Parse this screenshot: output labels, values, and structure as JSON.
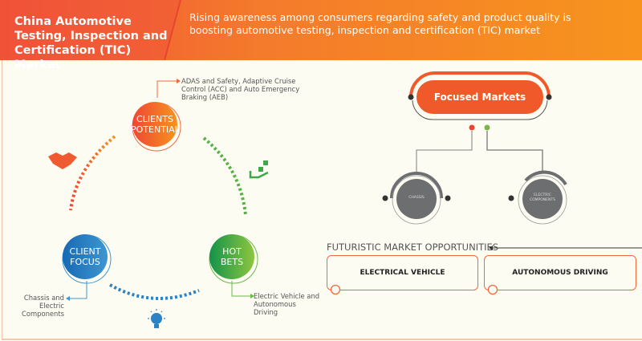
{
  "header": {
    "title": "China Automotive Testing, Inspection and Certification (TIC) Market",
    "subtitle": "Rising awareness among consumers regarding safety and product quality is boosting automotive testing, inspection and certification (TIC) market"
  },
  "cycle": {
    "clients_potential": {
      "label": "CLIENTS POTENTIAL",
      "note": "ADAS and Safety, Adaptive Cruise Control (ACC) and Auto Emergency Braking (AEB)",
      "color": "#f26a2c"
    },
    "client_focus": {
      "label": "CLIENT FOCUS",
      "note": "Chassis and Electric Components",
      "color": "#1f77bd"
    },
    "hot_bets": {
      "label": "HOT BETS",
      "note": "Electric Vehicle and Autonomous Driving",
      "color": "#3fa64a"
    },
    "icons": [
      "handshake-icon",
      "hand-money-icon",
      "lightbulb-icon"
    ]
  },
  "focused": {
    "title": "Focused Markets",
    "items": [
      "CHASSIS",
      "ELECTRIC COMPONENTS"
    ]
  },
  "futuristic": {
    "title": "FUTURISTIC MARKET OPPORTUNITIES",
    "items": [
      "ELECTRICAL VEHICLE",
      "AUTONOMOUS DRIVING"
    ]
  }
}
